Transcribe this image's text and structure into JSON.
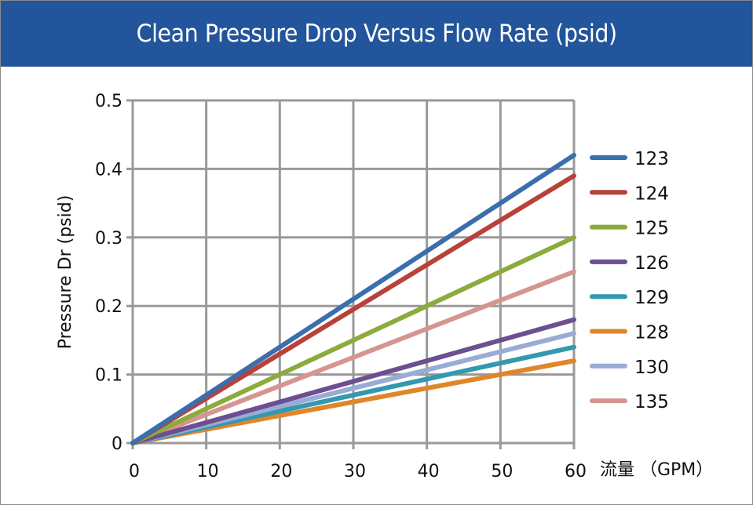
{
  "chart_data": {
    "type": "line",
    "title": "Clean Pressure Drop Versus Flow Rate (psid)",
    "xlabel": "流量 （GPM）",
    "ylabel": "Pressure Dr (psid)",
    "xlim": [
      0,
      60
    ],
    "ylim": [
      0,
      0.5
    ],
    "x_ticks": [
      "0",
      "10",
      "20",
      "30",
      "40",
      "50",
      "60"
    ],
    "y_ticks": [
      "0",
      "0.1",
      "0.2",
      "0.3",
      "0.4",
      "0.5"
    ],
    "grid": true,
    "legend_position": "right",
    "x": [
      0,
      60
    ],
    "series": [
      {
        "name": "123",
        "color": "#3a6eac",
        "values": [
          0,
          0.42
        ]
      },
      {
        "name": "124",
        "color": "#b8413a",
        "values": [
          0,
          0.39
        ]
      },
      {
        "name": "125",
        "color": "#8bab3d",
        "values": [
          0,
          0.3
        ]
      },
      {
        "name": "126",
        "color": "#6c4f91",
        "values": [
          0,
          0.18
        ]
      },
      {
        "name": "129",
        "color": "#3498ae",
        "values": [
          0,
          0.14
        ]
      },
      {
        "name": "128",
        "color": "#e0862a",
        "values": [
          0,
          0.12
        ]
      },
      {
        "name": "130",
        "color": "#98acd4",
        "values": [
          0,
          0.16
        ]
      },
      {
        "name": "135",
        "color": "#d69591",
        "values": [
          0,
          0.25
        ]
      }
    ],
    "draw_order": [
      "135",
      "128",
      "129",
      "130",
      "126",
      "125",
      "124",
      "123"
    ]
  }
}
